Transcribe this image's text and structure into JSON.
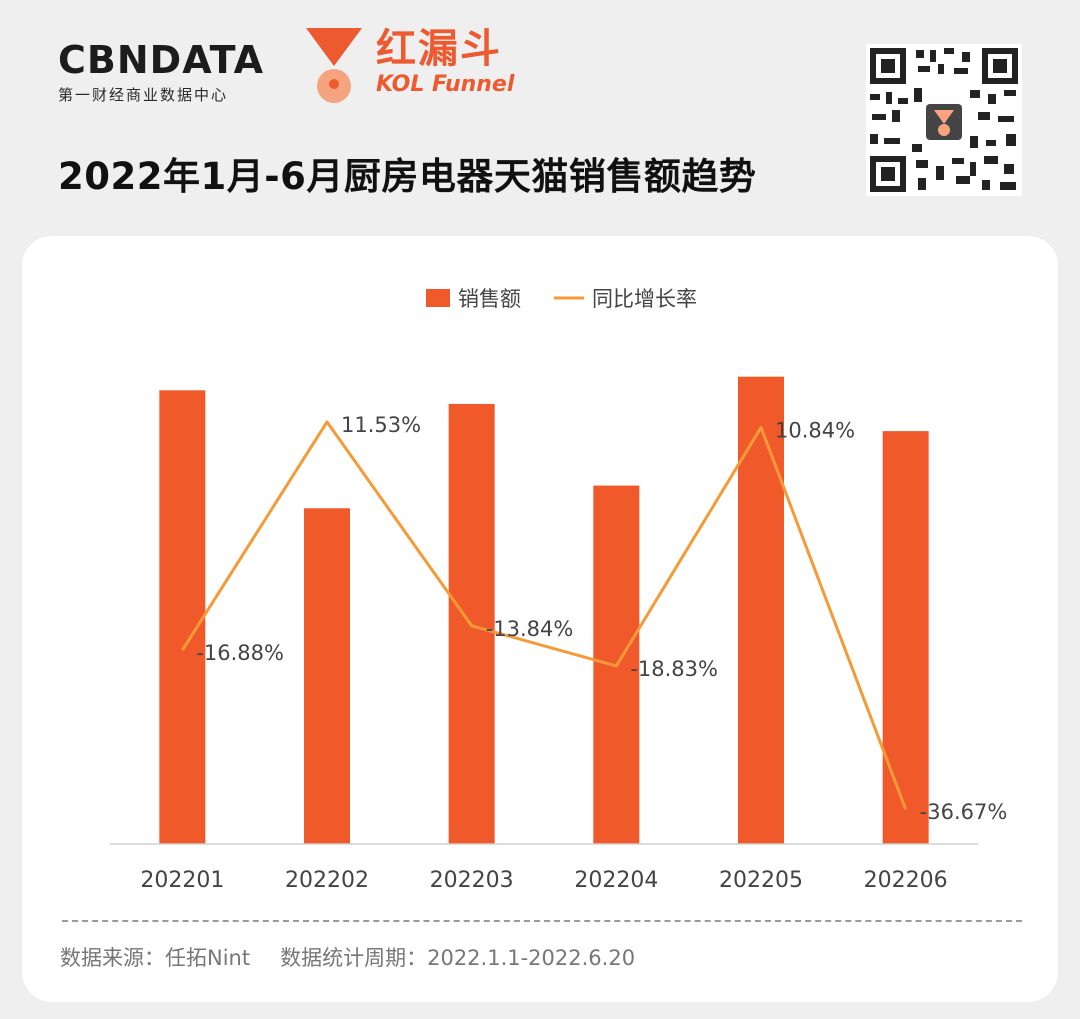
{
  "header": {
    "brand_name": "CBNDATA",
    "brand_sub": "第一财经商业数据中心",
    "kol_cn": "红漏斗",
    "kol_en": "KOL Funnel",
    "title": "2022年1月-6月厨房电器天猫销售额趋势"
  },
  "colors": {
    "bar": "#f05a2b",
    "line": "#f59a36",
    "accent": "#ee5a2f"
  },
  "chart_data": {
    "type": "bar",
    "title": "2022年1月-6月厨房电器天猫销售额趋势",
    "categories": [
      "202201",
      "202202",
      "202203",
      "202204",
      "202205",
      "202206"
    ],
    "series": [
      {
        "name": "销售额",
        "type": "bar",
        "values": [
          100,
          74,
          97,
          79,
          103,
          91
        ]
      },
      {
        "name": "同比增长率",
        "type": "line",
        "values": [
          -16.88,
          11.53,
          -13.84,
          -18.83,
          10.84,
          -36.67
        ],
        "labels": [
          "-16.88%",
          "11.53%",
          "-13.84%",
          "-18.83%",
          "10.84%",
          "-36.67%"
        ]
      }
    ],
    "bar_ylim": [
      0,
      108
    ],
    "line_ylim": [
      -40,
      16
    ],
    "legend": "top-center",
    "grid": false
  },
  "footer": {
    "source": "数据来源：任拓Nint",
    "period": "数据统计周期：2022.1.1-2022.6.20"
  }
}
